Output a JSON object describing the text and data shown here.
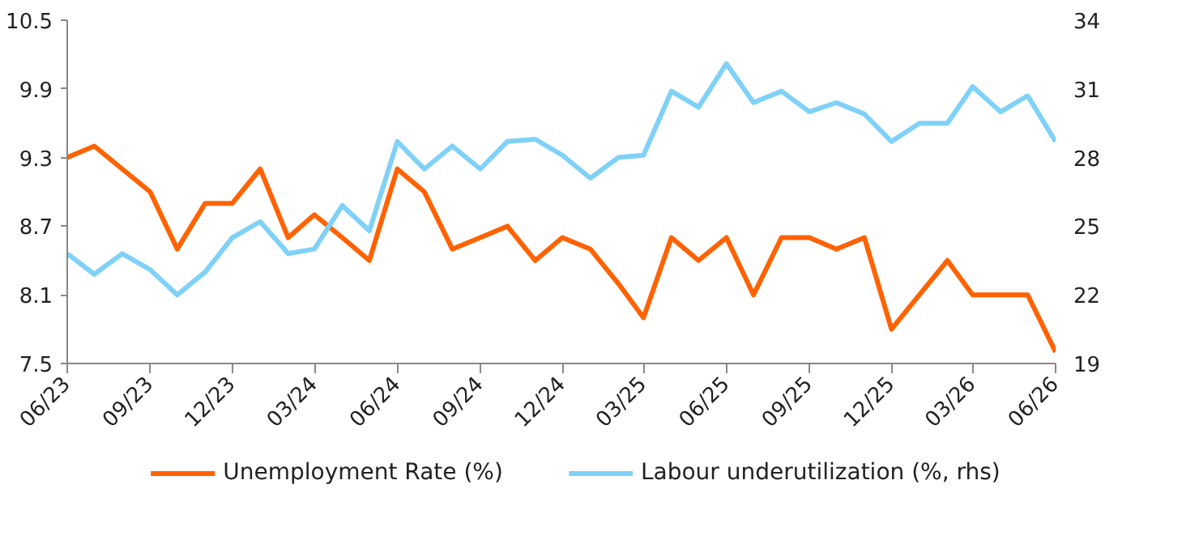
{
  "chart_data": {
    "type": "line",
    "x": [
      "2023-06",
      "2023-07",
      "2023-08",
      "2023-09",
      "2023-10",
      "2023-11",
      "2023-12",
      "2024-01",
      "2024-02",
      "2024-03",
      "2024-04",
      "2024-05",
      "2024-06",
      "2024-07",
      "2024-08",
      "2024-09",
      "2024-10",
      "2024-11",
      "2024-12",
      "2025-01",
      "2025-02",
      "2025-03",
      "2025-04",
      "2025-05",
      "2025-06",
      "2025-07",
      "2025-08",
      "2025-09",
      "2025-10",
      "2025-11",
      "2025-12",
      "2026-01",
      "2026-02",
      "2026-03",
      "2026-04",
      "2026-05",
      "2026-06"
    ],
    "series": [
      {
        "name": "Unemployment Rate (%)",
        "color": "#ff6200",
        "values": [
          9.3,
          9.4,
          9.2,
          9.0,
          8.5,
          8.9,
          8.9,
          9.2,
          8.6,
          8.8,
          8.6,
          8.4,
          9.2,
          9.0,
          8.5,
          8.6,
          8.7,
          8.4,
          8.6,
          8.5,
          8.2,
          7.9,
          8.6,
          8.4,
          8.6,
          8.1,
          8.6,
          8.6,
          8.5,
          8.6,
          7.8,
          8.1,
          8.4,
          8.1,
          8.1,
          8.1,
          7.6
        ]
      },
      {
        "name": "Labour underutilization (%, rhs)",
        "color": "#7fd1f8",
        "axis": "y2",
        "values": [
          23.8,
          22.9,
          23.8,
          23.1,
          22.0,
          23.0,
          24.5,
          25.2,
          23.8,
          24.0,
          25.9,
          24.8,
          28.7,
          27.5,
          28.5,
          27.5,
          28.7,
          28.8,
          28.1,
          27.1,
          28.0,
          28.1,
          30.9,
          30.2,
          32.1,
          30.4,
          30.9,
          30.0,
          30.4,
          29.9,
          28.7,
          29.5,
          29.5,
          31.1,
          30.0,
          30.7,
          28.7
        ]
      }
    ],
    "xlim": [
      "2023-06",
      "2026-06"
    ],
    "xticks": [
      {
        "value": "2023-06",
        "label": "06/23"
      },
      {
        "value": "2023-09",
        "label": "09/23"
      },
      {
        "value": "2023-12",
        "label": "12/23"
      },
      {
        "value": "2024-03",
        "label": "03/24"
      },
      {
        "value": "2024-06",
        "label": "06/24"
      },
      {
        "value": "2024-09",
        "label": "09/24"
      },
      {
        "value": "2024-12",
        "label": "12/24"
      },
      {
        "value": "2025-03",
        "label": "03/25"
      },
      {
        "value": "2025-06",
        "label": "06/25"
      },
      {
        "value": "2025-09",
        "label": "09/25"
      },
      {
        "value": "2025-12",
        "label": "12/25"
      },
      {
        "value": "2026-03",
        "label": "03/26"
      },
      {
        "value": "2026-06",
        "label": "06/26"
      }
    ],
    "ylim": [
      7.5,
      10.5
    ],
    "yticks": [
      7.5,
      8.1,
      8.7,
      9.3,
      9.9,
      10.5
    ],
    "y2lim": [
      19,
      34
    ],
    "y2ticks": [
      19,
      22,
      25,
      28,
      31,
      34
    ],
    "grid": false,
    "legend": "bottom",
    "line_style": "solid"
  }
}
